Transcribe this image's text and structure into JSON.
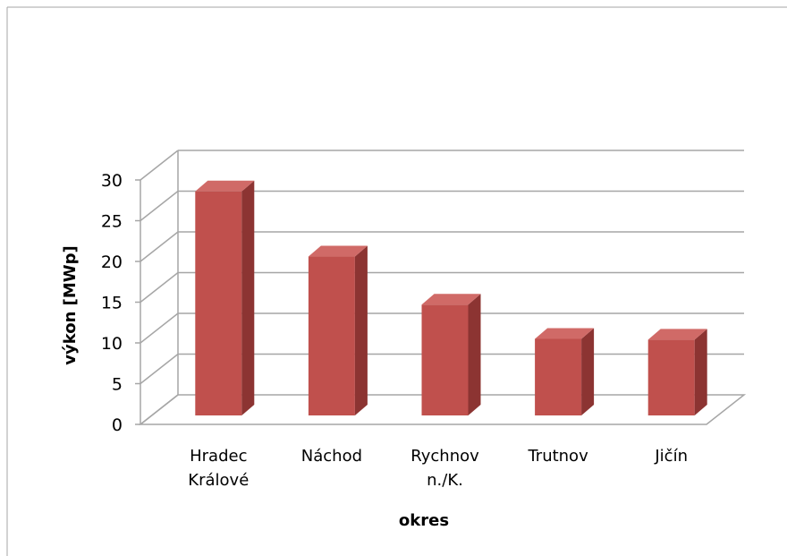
{
  "chart_data": {
    "type": "bar",
    "style": "3d-column",
    "title": "",
    "xlabel": "okres",
    "ylabel": "výkon [MWp]",
    "categories": [
      [
        "Hradec",
        "Králové"
      ],
      [
        "Náchod"
      ],
      [
        "Rychnov",
        "n./K."
      ],
      [
        "Trutnov"
      ],
      [
        "Jičín"
      ]
    ],
    "values": [
      27.5,
      19.5,
      13.6,
      9.4,
      9.3
    ],
    "ylim": [
      0,
      30
    ],
    "yticks": [
      "0",
      "5",
      "10",
      "15",
      "20",
      "25",
      "30"
    ],
    "grid": true,
    "legend": "none",
    "colors": {
      "bar_front": "#C0504D",
      "bar_side": "#8C3432",
      "bar_top": "#D06A67",
      "grid": "#A6A6A6",
      "frame": "#A6A6A6"
    }
  }
}
